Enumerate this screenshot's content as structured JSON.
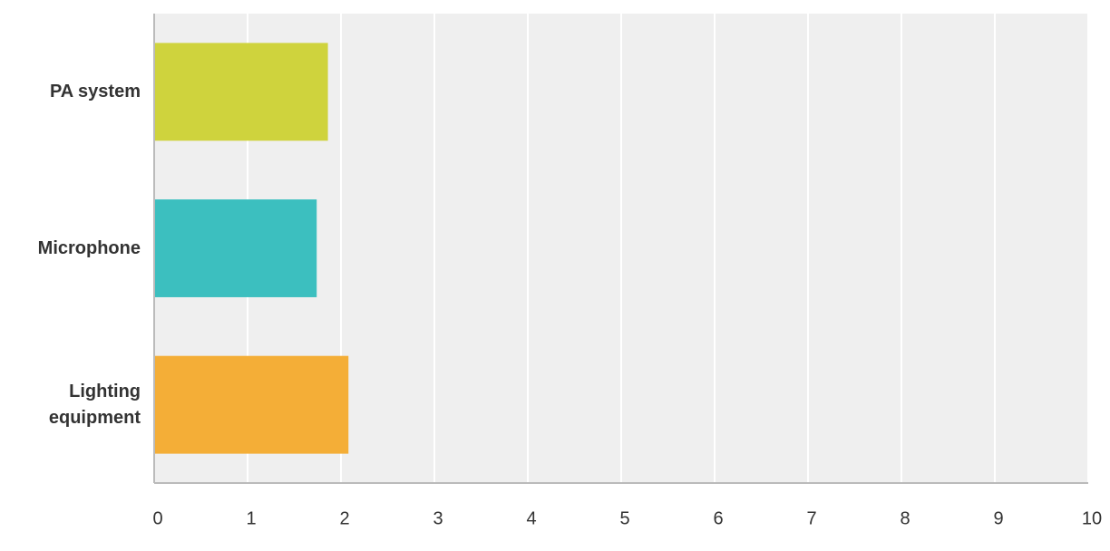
{
  "chart_data": {
    "type": "bar",
    "orientation": "horizontal",
    "categories": [
      "PA system",
      "Microphone",
      "Lighting equipment"
    ],
    "values": [
      1.86,
      1.74,
      2.08
    ],
    "colors": [
      "#cfd33d",
      "#3cbfbf",
      "#f4ae37"
    ],
    "xlim": [
      0,
      10
    ],
    "xticks": [
      0,
      1,
      2,
      3,
      4,
      5,
      6,
      7,
      8,
      9,
      10
    ],
    "grid": true
  }
}
